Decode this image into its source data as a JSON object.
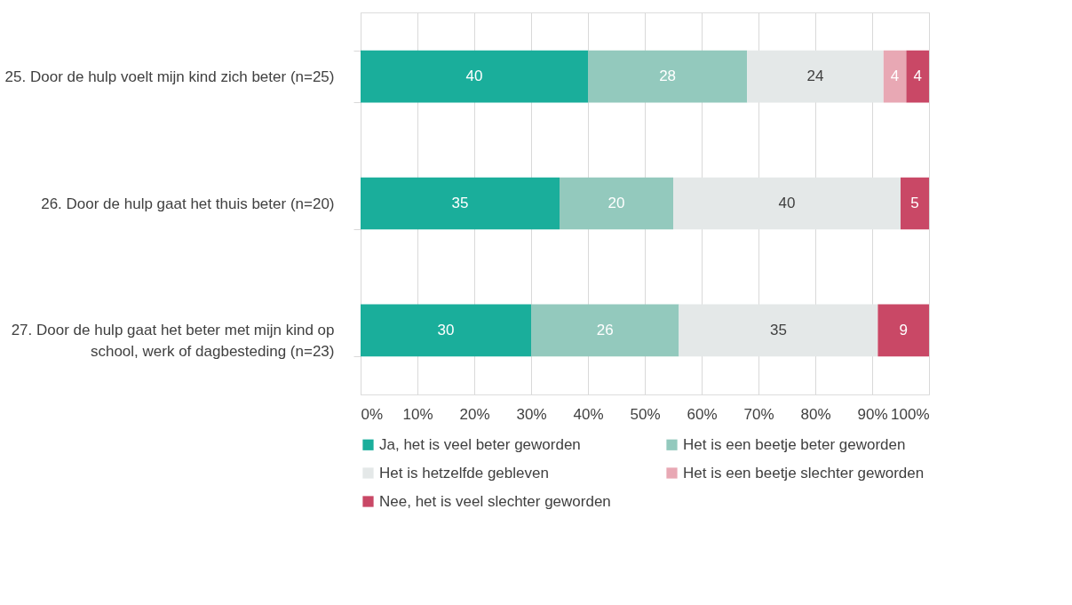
{
  "chart_data": {
    "type": "bar",
    "orientation": "horizontal",
    "stacked": true,
    "categories": [
      "25. Door de hulp voelt mijn kind zich beter (n=25)",
      "26. Door de hulp gaat het thuis beter (n=20)",
      "27. Door de hulp gaat het beter met mijn kind op school, werk of dagbesteding (n=23)"
    ],
    "series": [
      {
        "name": "Ja, het is veel beter geworden",
        "color": "#1aae9b",
        "values": [
          40,
          35,
          30
        ]
      },
      {
        "name": "Het is een beetje beter geworden",
        "color": "#93c9bd",
        "values": [
          28,
          20,
          26
        ]
      },
      {
        "name": "Het is hetzelfde gebleven",
        "color": "#e4e8e8",
        "values": [
          24,
          40,
          35
        ]
      },
      {
        "name": "Het is een beetje slechter geworden",
        "color": "#e8a8b4",
        "values": [
          4,
          null,
          null
        ]
      },
      {
        "name": "Nee, het is veel slechter geworden",
        "color": "#c94866",
        "values": [
          4,
          5,
          9
        ]
      }
    ],
    "xlim": [
      0,
      100
    ],
    "xticks": [
      {
        "value": 0,
        "label": "0%"
      },
      {
        "value": 10,
        "label": "10%"
      },
      {
        "value": 20,
        "label": "20%"
      },
      {
        "value": 30,
        "label": "30%"
      },
      {
        "value": 40,
        "label": "40%"
      },
      {
        "value": 50,
        "label": "50%"
      },
      {
        "value": 60,
        "label": "60%"
      },
      {
        "value": 70,
        "label": "70%"
      },
      {
        "value": 80,
        "label": "80%"
      },
      {
        "value": 90,
        "label": "90%"
      },
      {
        "value": 100,
        "label": "100%"
      }
    ],
    "grid": "x",
    "legend": "bottom",
    "data_labels": true
  }
}
